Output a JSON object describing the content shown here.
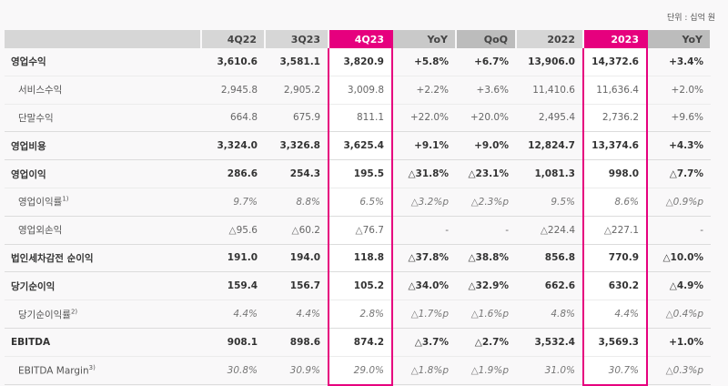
{
  "unit_label": "단위 : 십억 원",
  "columns": [
    "4Q22",
    "3Q23",
    "4Q23",
    "YoY",
    "QoQ",
    "2022",
    "2023",
    "YoY"
  ],
  "highlighted_columns": [
    "4Q23",
    "2023"
  ],
  "colors": {
    "highlight": "#e6007e",
    "header_gray": "#d6d6d6",
    "header_dark": "#bcbcbc"
  },
  "rows": [
    {
      "label": "영업수익",
      "sup": "",
      "values": [
        "3,610.6",
        "3,581.1",
        "3,820.9",
        "+5.8%",
        "+6.7%",
        "13,906.0",
        "14,372.6",
        "+3.4%"
      ]
    },
    {
      "label": "서비스수익",
      "sup": "",
      "values": [
        "2,945.8",
        "2,905.2",
        "3,009.8",
        "+2.2%",
        "+3.6%",
        "11,410.6",
        "11,636.4",
        "+2.0%"
      ]
    },
    {
      "label": "단말수익",
      "sup": "",
      "values": [
        "664.8",
        "675.9",
        "811.1",
        "+22.0%",
        "+20.0%",
        "2,495.4",
        "2,736.2",
        "+9.6%"
      ]
    },
    {
      "label": "영업비용",
      "sup": "",
      "values": [
        "3,324.0",
        "3,326.8",
        "3,625.4",
        "+9.1%",
        "+9.0%",
        "12,824.7",
        "13,374.6",
        "+4.3%"
      ]
    },
    {
      "label": "영업이익",
      "sup": "",
      "values": [
        "286.6",
        "254.3",
        "195.5",
        "△31.8%",
        "△23.1%",
        "1,081.3",
        "998.0",
        "△7.7%"
      ]
    },
    {
      "label": "영업이익률",
      "sup": "1)",
      "values": [
        "9.7%",
        "8.8%",
        "6.5%",
        "△3.2%p",
        "△2.3%p",
        "9.5%",
        "8.6%",
        "△0.9%p"
      ]
    },
    {
      "label": "영업외손익",
      "sup": "",
      "values": [
        "△95.6",
        "△60.2",
        "△76.7",
        "-",
        "-",
        "△224.4",
        "△227.1",
        "-"
      ]
    },
    {
      "label": "법인세차감전 순이익",
      "sup": "",
      "values": [
        "191.0",
        "194.0",
        "118.8",
        "△37.8%",
        "△38.8%",
        "856.8",
        "770.9",
        "△10.0%"
      ]
    },
    {
      "label": "당기순이익",
      "sup": "",
      "values": [
        "159.4",
        "156.7",
        "105.2",
        "△34.0%",
        "△32.9%",
        "662.6",
        "630.2",
        "△4.9%"
      ]
    },
    {
      "label": "당기순이익률",
      "sup": "2)",
      "values": [
        "4.4%",
        "4.4%",
        "2.8%",
        "△1.7%p",
        "△1.6%p",
        "4.8%",
        "4.4%",
        "△0.4%p"
      ]
    },
    {
      "label": "EBITDA",
      "sup": "",
      "values": [
        "908.1",
        "898.6",
        "874.2",
        "△3.7%",
        "△2.7%",
        "3,532.4",
        "3,569.3",
        "+1.0%"
      ]
    },
    {
      "label": "EBITDA Margin",
      "sup": "3)",
      "values": [
        "30.8%",
        "30.9%",
        "29.0%",
        "△1.8%p",
        "△1.9%p",
        "31.0%",
        "30.7%",
        "△0.3%p"
      ]
    }
  ]
}
